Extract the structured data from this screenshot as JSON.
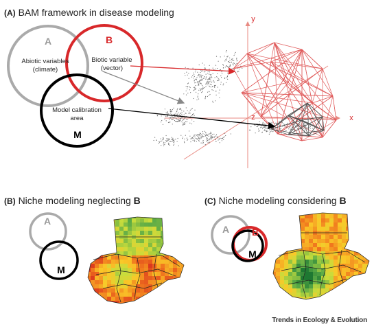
{
  "panel_a": {
    "tag": "(A)",
    "title": "BAM framework in disease modeling",
    "circle_a": {
      "letter": "A",
      "label_line1": "Abiotic variables",
      "label_line2": "(climate)"
    },
    "circle_b": {
      "letter": "B",
      "label_line1": "Biotic variable",
      "label_line2": "(vector)"
    },
    "circle_m": {
      "letter": "M",
      "label_line1": "Model calibration",
      "label_line2": "area"
    },
    "axes": {
      "x": "x",
      "y": "y",
      "z": "z"
    }
  },
  "panel_b": {
    "tag": "(B)",
    "title_prefix": "Niche modeling neglecting",
    "title_bold": "B",
    "circle_a": "A",
    "circle_m": "M"
  },
  "panel_c": {
    "tag": "(C)",
    "title_prefix": "Niche modeling considering",
    "title_bold": "B",
    "circle_a": "A",
    "circle_b": "B",
    "circle_m": "M"
  },
  "footer": {
    "journal": "Trends in Ecology & Evolution"
  },
  "colors": {
    "abiotic": "#aaaaaa",
    "biotic": "#d8282a",
    "calibration": "#000000",
    "axis": "#e88a82"
  }
}
